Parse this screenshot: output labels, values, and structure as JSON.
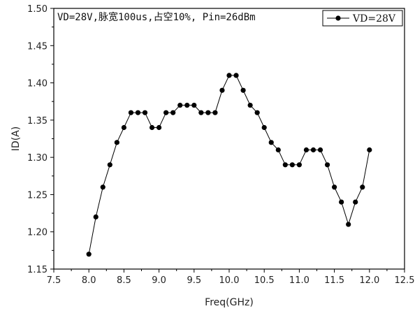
{
  "chart_data": {
    "type": "line",
    "annotation": "VD=28V,脉宽100us,占空10%, Pin=26dBm",
    "xlabel": "Freq(GHz)",
    "ylabel": "ID(A)",
    "xlim": [
      7.5,
      12.5
    ],
    "ylim": [
      1.15,
      1.5
    ],
    "xticks": [
      7.5,
      8.0,
      8.5,
      9.0,
      9.5,
      10.0,
      10.5,
      11.0,
      11.5,
      12.0,
      12.5
    ],
    "xtick_labels": [
      "7.5",
      "8.0",
      "8.5",
      "9.0",
      "9.5",
      "10.0",
      "10.5",
      "11.0",
      "11.5",
      "12.0",
      "12.5"
    ],
    "yticks": [
      1.15,
      1.2,
      1.25,
      1.3,
      1.35,
      1.4,
      1.45,
      1.5
    ],
    "ytick_labels": [
      "1.15",
      "1.20",
      "1.25",
      "1.30",
      "1.35",
      "1.40",
      "1.45",
      "1.50"
    ],
    "legend_position": "top-right",
    "grid": false,
    "series": [
      {
        "name": "VD=28V",
        "color": "#000000",
        "marker": "filled-circle",
        "x": [
          8.0,
          8.1,
          8.2,
          8.3,
          8.4,
          8.5,
          8.6,
          8.7,
          8.8,
          8.9,
          9.0,
          9.1,
          9.2,
          9.3,
          9.4,
          9.5,
          9.6,
          9.7,
          9.8,
          9.9,
          10.0,
          10.1,
          10.2,
          10.3,
          10.4,
          10.5,
          10.6,
          10.7,
          10.8,
          10.9,
          11.0,
          11.1,
          11.2,
          11.3,
          11.4,
          11.5,
          11.6,
          11.7,
          11.8,
          11.9,
          12.0
        ],
        "y": [
          1.17,
          1.22,
          1.26,
          1.29,
          1.32,
          1.34,
          1.36,
          1.36,
          1.36,
          1.34,
          1.34,
          1.36,
          1.36,
          1.37,
          1.37,
          1.37,
          1.36,
          1.36,
          1.36,
          1.39,
          1.41,
          1.41,
          1.39,
          1.37,
          1.36,
          1.34,
          1.32,
          1.31,
          1.29,
          1.29,
          1.29,
          1.31,
          1.31,
          1.31,
          1.29,
          1.26,
          1.24,
          1.21,
          1.24,
          1.26,
          1.31
        ]
      }
    ]
  }
}
